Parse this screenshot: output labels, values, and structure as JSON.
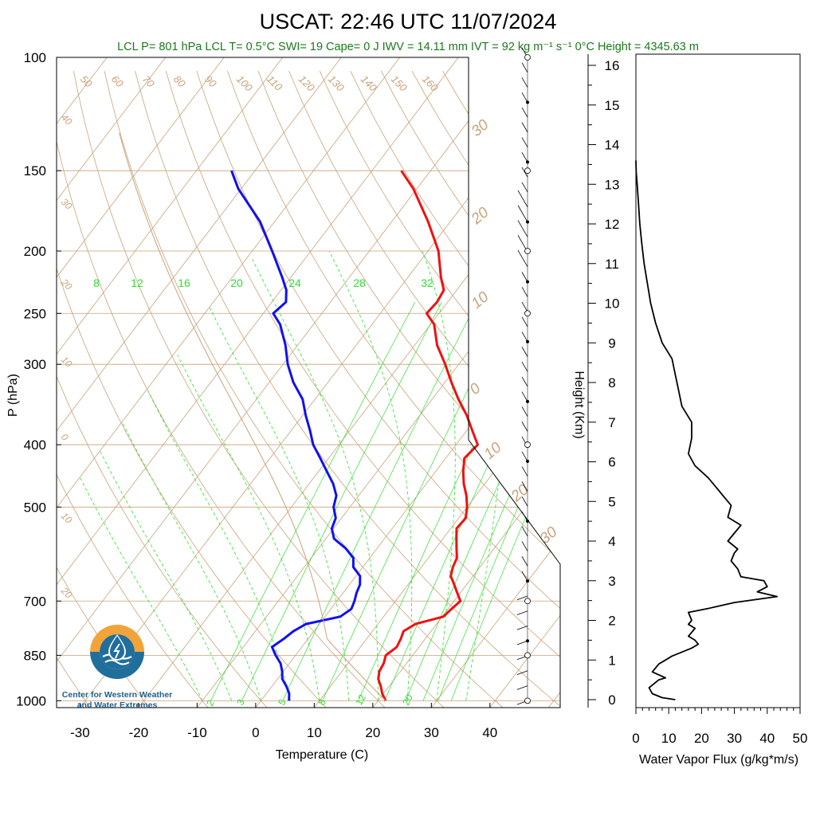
{
  "title": "USCAT: 22:46 UTC 11/07/2024",
  "stats": "LCL P= 801 hPa  LCL T= 0.5°C  SWI= 19  Cape= 0 J  IWV = 14.11 mm  IVT = 92 kg m⁻¹ s⁻¹  0°C Height = 4345.63 m",
  "logo": {
    "line1": "Center for Western Weather",
    "line2": "and Water Extremes"
  },
  "colors": {
    "temperature": "#ee1111",
    "dewpoint": "#1111ee",
    "isotherm": "#c8a27a",
    "mixing_ratio": "#2ee02e",
    "stats_text": "#1a7a1a",
    "logo_blue": "#1f6e9c",
    "logo_orange": "#f2a43a"
  },
  "chart_data": [
    {
      "type": "line",
      "subtype": "skew-T log-P sounding",
      "xlabel": "Temperature (C)",
      "ylabel": "P (hPa)",
      "xlim": [
        -34,
        52
      ],
      "ylim": [
        1025,
        100
      ],
      "x_ticks": [
        "-30",
        "-20",
        "-10",
        "0",
        "10",
        "20",
        "30",
        "40"
      ],
      "y_ticks": [
        "100",
        "150",
        "200",
        "250",
        "300",
        "400",
        "500",
        "700",
        "850",
        "1000"
      ],
      "skewed_temp_labels": [
        "50",
        "60",
        "70",
        "80",
        "90",
        "100",
        "110",
        "120",
        "130",
        "140",
        "150",
        "160",
        "40",
        "30",
        "20",
        "10",
        "0",
        "10",
        "20"
      ],
      "theta_labels": [
        "30",
        "20",
        "10",
        "0",
        "10",
        "20",
        "30"
      ],
      "mixing_ratio_labels_top": [
        "8",
        "12",
        "16",
        "20",
        "24",
        "28",
        "32"
      ],
      "mixing_ratio_labels_bottom": [
        "2",
        "3",
        "5",
        "8",
        "12",
        "20"
      ],
      "series": [
        {
          "name": "Temperature",
          "color": "#ee1111",
          "p": [
            1000,
            975,
            950,
            925,
            900,
            875,
            850,
            825,
            800,
            780,
            760,
            740,
            720,
            700,
            680,
            660,
            640,
            620,
            600,
            580,
            560,
            540,
            520,
            500,
            480,
            460,
            440,
            420,
            400,
            380,
            360,
            340,
            320,
            300,
            280,
            260,
            250,
            240,
            230,
            220,
            200,
            180,
            160,
            150
          ],
          "t": [
            21.3,
            19.8,
            18.6,
            17.2,
            16.4,
            16.1,
            15.4,
            16.2,
            15.8,
            15.3,
            16.4,
            20.2,
            20.6,
            21.1,
            19.5,
            17.9,
            16.2,
            15.4,
            14.9,
            13.6,
            12.3,
            11.0,
            11.2,
            10.0,
            8.4,
            6.4,
            4.7,
            3.2,
            3.7,
            0.9,
            -2.0,
            -5.5,
            -8.9,
            -12.3,
            -16.2,
            -19.4,
            -22.1,
            -21.8,
            -22.2,
            -24.3,
            -28.2,
            -33.8,
            -40.6,
            -45.0
          ]
        },
        {
          "name": "Dewpoint",
          "color": "#1111ee",
          "p": [
            1000,
            975,
            950,
            925,
            900,
            875,
            850,
            825,
            800,
            780,
            760,
            740,
            720,
            700,
            680,
            660,
            640,
            620,
            600,
            580,
            560,
            540,
            520,
            500,
            480,
            460,
            440,
            420,
            400,
            380,
            360,
            340,
            320,
            300,
            280,
            260,
            250,
            240,
            230,
            220,
            200,
            180,
            160,
            150
          ],
          "t": [
            4.8,
            3.9,
            2.5,
            0.8,
            -0.2,
            -1.5,
            -3.4,
            -5.1,
            -4.1,
            -3.5,
            -2.3,
            2.6,
            3.5,
            3.0,
            2.3,
            1.8,
            0.7,
            -1.6,
            -2.8,
            -5.3,
            -8.6,
            -10.3,
            -11.0,
            -12.8,
            -13.8,
            -15.9,
            -18.6,
            -21.4,
            -24.4,
            -26.8,
            -29.5,
            -32.1,
            -35.9,
            -39.2,
            -42.1,
            -45.7,
            -48.3,
            -47.6,
            -49.1,
            -51.4,
            -56.6,
            -62.5,
            -70.5,
            -74.0
          ]
        }
      ],
      "wind_barbs": "present at right of sounding, 1000 to 100 hPa"
    },
    {
      "type": "line",
      "xlabel": "Water Vapor Flux (g/kg*m/s)",
      "ylabel": "Height (Km)",
      "xlim": [
        0,
        50
      ],
      "ylim": [
        0,
        16.4
      ],
      "x_ticks": [
        "0",
        "10",
        "20",
        "30",
        "40",
        "50"
      ],
      "y_ticks": [
        "0",
        "1",
        "2",
        "3",
        "4",
        "5",
        "6",
        "7",
        "8",
        "9",
        "10",
        "11",
        "12",
        "13",
        "14",
        "15",
        "16"
      ],
      "series": [
        {
          "name": "Water Vapor Flux",
          "x": [
            12,
            8,
            5,
            4,
            7,
            9,
            5,
            6,
            7,
            9,
            11,
            14,
            17,
            19,
            18,
            16,
            18,
            16,
            17,
            16,
            22,
            30,
            43,
            37,
            40,
            39,
            32,
            31,
            29,
            30,
            31,
            28,
            30,
            32,
            28,
            29,
            27,
            25,
            22,
            18,
            16,
            17,
            17,
            14,
            13,
            12,
            11,
            8,
            6,
            4.5,
            3.5,
            2.5,
            1.8,
            1.2,
            0.8,
            0.4,
            0.1,
            0
          ],
          "y": [
            0.0,
            0.05,
            0.15,
            0.3,
            0.5,
            0.55,
            0.7,
            0.8,
            0.9,
            1.0,
            1.1,
            1.2,
            1.3,
            1.4,
            1.5,
            1.6,
            1.8,
            1.9,
            2.0,
            2.2,
            2.3,
            2.45,
            2.6,
            2.72,
            2.85,
            3.0,
            3.1,
            3.3,
            3.5,
            3.7,
            3.8,
            4.0,
            4.2,
            4.4,
            4.6,
            4.9,
            5.1,
            5.3,
            5.6,
            5.9,
            6.2,
            6.6,
            7.0,
            7.4,
            7.8,
            8.2,
            8.6,
            9.0,
            9.5,
            10.0,
            10.5,
            11.0,
            11.5,
            12.0,
            12.5,
            13.0,
            13.3,
            13.6
          ]
        }
      ]
    }
  ]
}
